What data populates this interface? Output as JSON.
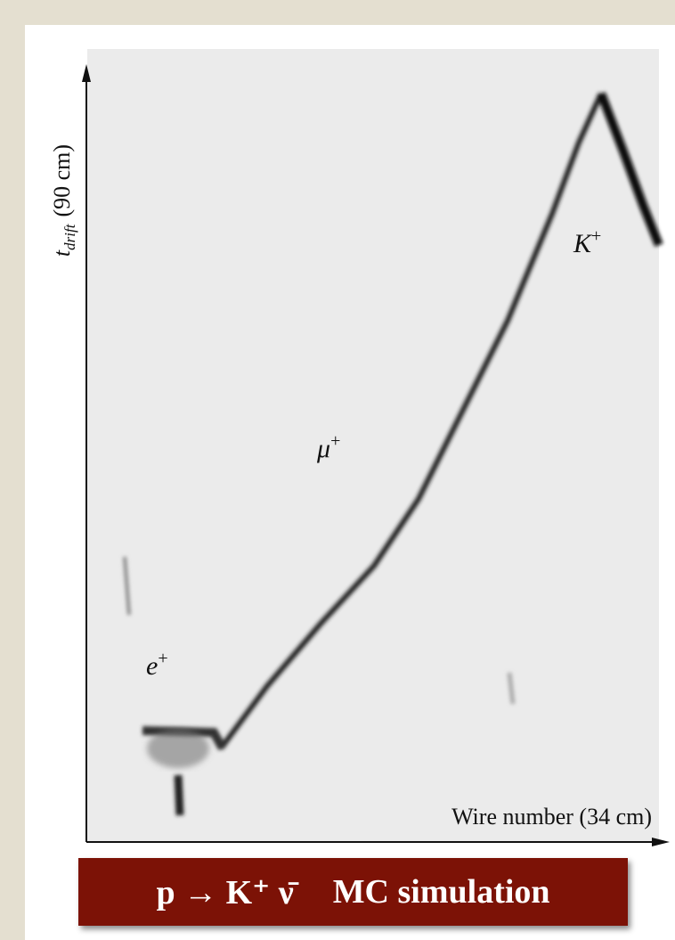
{
  "display": {
    "y_axis_label": {
      "main": "t",
      "subscript": "drift",
      "unit": "(90 cm)"
    },
    "x_axis_label": "Wire number (34 cm)",
    "particles": [
      {
        "symbol": "K",
        "charge": "+"
      },
      {
        "symbol": "μ",
        "charge": "+"
      },
      {
        "symbol": "e",
        "charge": "+"
      }
    ]
  },
  "caption": {
    "process": "p → K⁺ ν̄",
    "note": "MC simulation"
  }
}
